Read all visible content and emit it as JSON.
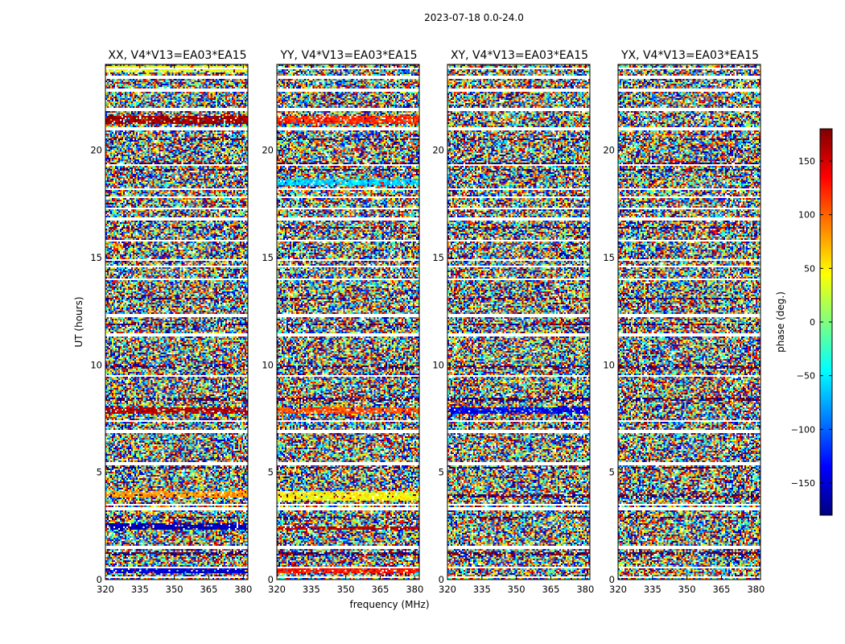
{
  "figure": {
    "suptitle": "2023-07-18 0.0-24.0",
    "xlabel": "frequency (MHz)",
    "ylabel": "UT (hours)"
  },
  "colorbar": {
    "label": "phase (deg.)",
    "colormap": "jet",
    "colors": [
      "#00007f",
      "#0000ff",
      "#007fff",
      "#00ffff",
      "#7fff7f",
      "#ffff00",
      "#ff7f00",
      "#ff0000",
      "#7f0000"
    ],
    "range": [
      -180,
      180
    ],
    "ticks": [
      -150,
      -100,
      -50,
      0,
      50,
      100,
      150
    ],
    "tick_labels": [
      "−150",
      "−100",
      "−50",
      "0",
      "50",
      "100",
      "150"
    ]
  },
  "chart_data": [
    {
      "type": "heatmap",
      "title": "XX, V4*V13=EA03*EA15",
      "xlim": [
        320,
        382
      ],
      "ylim": [
        0,
        24
      ],
      "xticks": [
        320,
        335,
        350,
        365,
        380
      ],
      "yticks": [
        0,
        5,
        10,
        15,
        20
      ],
      "coherent_bands": [
        {
          "ut": [
            21.2,
            21.6
          ],
          "phase_deg": 170
        },
        {
          "ut": [
            7.7,
            8.0
          ],
          "phase_deg": 160
        },
        {
          "ut": [
            3.8,
            4.1
          ],
          "phase_deg": 80
        },
        {
          "ut": [
            2.3,
            2.6
          ],
          "phase_deg": -160
        },
        {
          "ut": [
            0.3,
            0.5
          ],
          "phase_deg": -150
        },
        {
          "ut": [
            23.6,
            23.9
          ],
          "phase_deg": 40
        }
      ]
    },
    {
      "type": "heatmap",
      "title": "YY, V4*V13=EA03*EA15",
      "xlim": [
        320,
        382
      ],
      "ylim": [
        0,
        24
      ],
      "xticks": [
        320,
        335,
        350,
        365,
        380
      ],
      "yticks": [
        0,
        5,
        10,
        15,
        20
      ],
      "coherent_bands": [
        {
          "ut": [
            21.2,
            21.6
          ],
          "phase_deg": 120
        },
        {
          "ut": [
            7.7,
            8.0
          ],
          "phase_deg": 110
        },
        {
          "ut": [
            3.7,
            4.1
          ],
          "phase_deg": 45
        },
        {
          "ut": [
            2.3,
            2.5
          ],
          "phase_deg": 160
        },
        {
          "ut": [
            0.3,
            0.5
          ],
          "phase_deg": 130
        },
        {
          "ut": [
            18.4,
            18.7
          ],
          "phase_deg": -60
        }
      ]
    },
    {
      "type": "heatmap",
      "title": "XY, V4*V13=EA03*EA15",
      "xlim": [
        320,
        382
      ],
      "ylim": [
        0,
        24
      ],
      "xticks": [
        320,
        335,
        350,
        365,
        380
      ],
      "yticks": [
        0,
        5,
        10,
        15,
        20
      ],
      "coherent_bands": [
        {
          "ut": [
            7.7,
            8.0
          ],
          "phase_deg": -140
        }
      ]
    },
    {
      "type": "heatmap",
      "title": "YX, V4*V13=EA03*EA15",
      "xlim": [
        320,
        382
      ],
      "ylim": [
        0,
        24
      ],
      "xticks": [
        320,
        335,
        350,
        365,
        380
      ],
      "yticks": [
        0,
        5,
        10,
        15,
        20
      ],
      "coherent_bands": []
    }
  ],
  "flagged_ut_gaps": [
    0.1,
    0.55,
    1.5,
    3.3,
    3.5,
    5.4,
    6.9,
    7.4,
    9.5,
    11.4,
    12.3,
    14.0,
    14.6,
    14.9,
    15.8,
    16.8,
    17.3,
    17.8,
    18.2,
    19.3,
    21.0,
    21.9,
    22.8,
    23.4,
    23.8
  ],
  "dark_ut_rows": [
    1.2,
    2.9,
    3.9,
    5.2,
    8.4,
    9.9,
    11.9,
    13.1,
    16.4,
    19.1,
    19.4,
    20.5
  ]
}
